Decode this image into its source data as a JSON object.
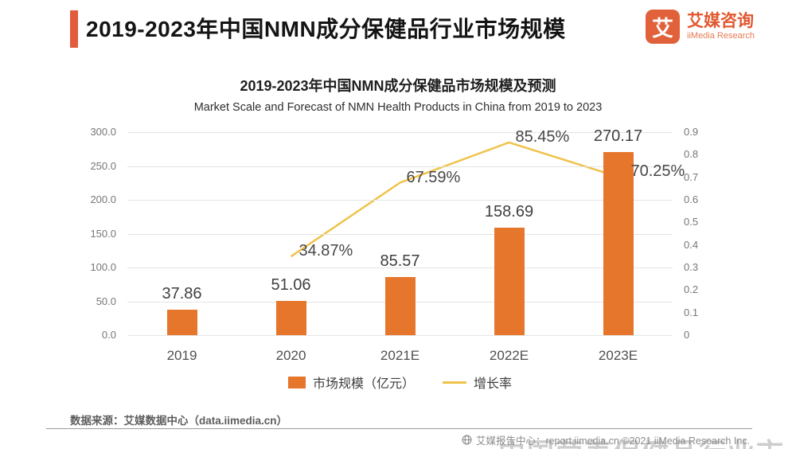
{
  "header": {
    "title": "2019-2023年中国NMN成分保健品行业市场规模",
    "brand": {
      "name": "艾媒咨询",
      "sub": "iiMedia Research",
      "icon_char": "艾"
    }
  },
  "chart": {
    "title_cn": "2019-2023年中国NMN成分保健品市场规模及预测",
    "title_en": "Market Scale and Forecast of NMN Health Products in China from 2019 to 2023"
  },
  "chart_data": {
    "type": "bar+line",
    "categories": [
      "2019",
      "2020",
      "2021E",
      "2022E",
      "2023E"
    ],
    "series": [
      {
        "name": "市场规模（亿元）",
        "type": "bar",
        "axis": "left",
        "color": "#E5762B",
        "values": [
          37.86,
          51.06,
          85.57,
          158.69,
          270.17
        ],
        "labels": [
          "37.86",
          "51.06",
          "85.57",
          "158.69",
          "270.17"
        ]
      },
      {
        "name": "增长率",
        "type": "line",
        "axis": "right",
        "color": "#EFC24A",
        "values": [
          null,
          0.3487,
          0.6759,
          0.8545,
          0.7025
        ],
        "labels": [
          null,
          "34.87%",
          "67.59%",
          "85.45%",
          "70.25%"
        ]
      }
    ],
    "left_axis": {
      "min": 0,
      "max": 300,
      "ticks": [
        "300.0",
        "250.0",
        "200.0",
        "150.0",
        "100.0",
        "50.0",
        "0.0"
      ]
    },
    "right_axis": {
      "min": 0,
      "max": 0.9,
      "ticks": [
        "0.9",
        "0.8",
        "0.7",
        "0.6",
        "0.5",
        "0.4",
        "0.3",
        "0.2",
        "0.1",
        "0"
      ]
    },
    "grid": true,
    "legend_position": "bottom"
  },
  "footer": {
    "source": "数据来源：艾媒数据中心（data.iimedia.cn）",
    "report": "艾媒报告中心：report.iimedia.cn ©2021 iiMedia Research Inc.",
    "watermark_fragment": "中国营养保健品行业市场"
  },
  "colors": {
    "accent": "#E25B3C",
    "bar": "#E5762B",
    "line": "#EFC24A",
    "brand": "#E2572F"
  }
}
